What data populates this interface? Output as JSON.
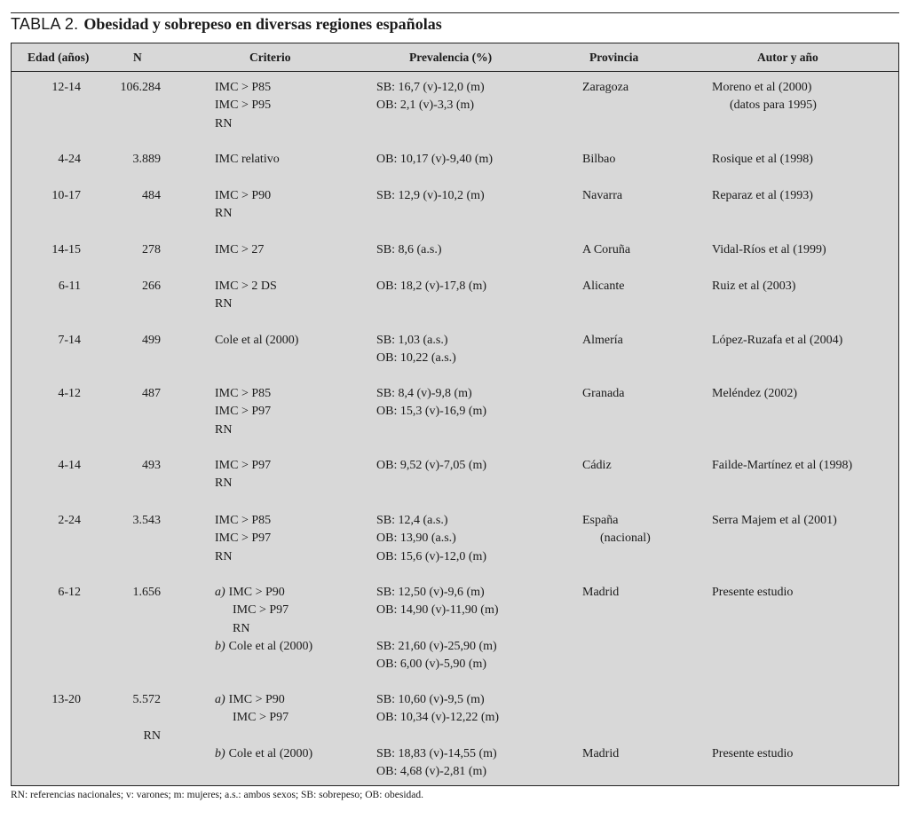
{
  "title": {
    "label": "TABLA 2.",
    "text": "Obesidad y sobrepeso en diversas regiones españolas"
  },
  "headers": [
    "Edad (años)",
    "N",
    "Criterio",
    "Prevalencia (%)",
    "Provincia",
    "Autor y año"
  ],
  "rows": [
    {
      "edad": [
        "12-14"
      ],
      "n": [
        "106.284"
      ],
      "criterio": [
        {
          "t": "IMC > P85"
        },
        {
          "t": "IMC > P95"
        },
        {
          "t": "RN"
        }
      ],
      "prev": [
        "SB: 16,7 (v)-12,0 (m)",
        "OB: 2,1 (v)-3,3 (m)"
      ],
      "prov": [
        {
          "t": "Zaragoza"
        }
      ],
      "autor": [
        {
          "t": "Moreno et al (2000)"
        },
        {
          "t": "(datos para 1995)",
          "sub": true
        }
      ]
    },
    {
      "edad": [
        "4-24"
      ],
      "n": [
        "3.889"
      ],
      "criterio": [
        {
          "t": "IMC relativo"
        }
      ],
      "prev": [
        "OB: 10,17 (v)-9,40 (m)"
      ],
      "prov": [
        {
          "t": "Bilbao"
        }
      ],
      "autor": [
        {
          "t": "Rosique et al (1998)"
        }
      ]
    },
    {
      "edad": [
        "10-17"
      ],
      "n": [
        "484"
      ],
      "criterio": [
        {
          "t": "IMC > P90"
        },
        {
          "t": "RN"
        }
      ],
      "prev": [
        "SB: 12,9 (v)-10,2 (m)"
      ],
      "prov": [
        {
          "t": "Navarra"
        }
      ],
      "autor": [
        {
          "t": "Reparaz et al (1993)"
        }
      ]
    },
    {
      "edad": [
        "14-15"
      ],
      "n": [
        "278"
      ],
      "criterio": [
        {
          "t": "IMC > 27"
        }
      ],
      "prev": [
        "SB: 8,6 (a.s.)"
      ],
      "prov": [
        {
          "t": "A Coruña"
        }
      ],
      "autor": [
        {
          "t": "Vidal-Ríos et al (1999)"
        }
      ]
    },
    {
      "edad": [
        "6-11"
      ],
      "n": [
        "266"
      ],
      "criterio": [
        {
          "t": "IMC > 2 DS"
        },
        {
          "t": "RN"
        }
      ],
      "prev": [
        "OB: 18,2 (v)-17,8 (m)"
      ],
      "prov": [
        {
          "t": "Alicante"
        }
      ],
      "autor": [
        {
          "t": "Ruiz et al (2003)"
        }
      ]
    },
    {
      "edad": [
        "7-14"
      ],
      "n": [
        "499"
      ],
      "criterio": [
        {
          "t": "Cole et al (2000)"
        }
      ],
      "prev": [
        "SB: 1,03 (a.s.)",
        "OB: 10,22 (a.s.)"
      ],
      "prov": [
        {
          "t": "Almería"
        }
      ],
      "autor": [
        {
          "t": "López-Ruzafa et al (2004)"
        }
      ]
    },
    {
      "edad": [
        "4-12"
      ],
      "n": [
        "487"
      ],
      "criterio": [
        {
          "t": "IMC > P85"
        },
        {
          "t": "IMC > P97"
        },
        {
          "t": "RN"
        }
      ],
      "prev": [
        "SB: 8,4 (v)-9,8 (m)",
        "OB: 15,3 (v)-16,9 (m)"
      ],
      "prov": [
        {
          "t": "Granada"
        }
      ],
      "autor": [
        {
          "t": "Meléndez (2002)"
        }
      ]
    },
    {
      "edad": [
        "4-14"
      ],
      "n": [
        "493"
      ],
      "criterio": [
        {
          "t": "IMC > P97"
        },
        {
          "t": "RN"
        }
      ],
      "prev": [
        "OB: 9,52 (v)-7,05 (m)"
      ],
      "prov": [
        {
          "t": "Cádiz"
        }
      ],
      "autor": [
        {
          "t": "Failde-Martínez et al (1998)"
        }
      ]
    },
    {
      "edad": [
        "2-24"
      ],
      "n": [
        "3.543"
      ],
      "criterio": [
        {
          "t": "IMC > P85"
        },
        {
          "t": "IMC > P97"
        },
        {
          "t": "RN"
        }
      ],
      "prev": [
        "SB: 12,4 (a.s.)",
        "OB: 13,90 (a.s.)",
        "OB: 15,6 (v)-12,0 (m)"
      ],
      "prov": [
        {
          "t": "España"
        },
        {
          "t": "(nacional)",
          "sub": true
        }
      ],
      "autor": [
        {
          "t": "Serra Majem et al (2001)"
        }
      ]
    },
    {
      "edad": [
        "6-12"
      ],
      "n": [
        "1.656"
      ],
      "criterio": [
        {
          "p": "a)",
          "t": "IMC > P90"
        },
        {
          "t": "IMC > P97",
          "sub": true
        },
        {
          "t": "RN",
          "sub": true
        },
        {
          "p": "b)",
          "t": "Cole et al (2000)"
        }
      ],
      "prev": [
        "SB: 12,50 (v)-9,6 (m)",
        "OB: 14,90 (v)-11,90 (m)",
        "",
        "SB: 21,60 (v)-25,90 (m)",
        "OB: 6,00 (v)-5,90 (m)"
      ],
      "prov": [
        {
          "t": "Madrid"
        }
      ],
      "autor": [
        {
          "t": "Presente estudio"
        }
      ]
    },
    {
      "edad": [
        "13-20"
      ],
      "n": [
        "5.572",
        "",
        "RN"
      ],
      "criterio": [
        {
          "p": "a)",
          "t": "IMC > P90"
        },
        {
          "t": "IMC > P97",
          "sub": true
        },
        {
          "t": ""
        },
        {
          "p": "b)",
          "t": "Cole et al (2000)"
        }
      ],
      "prev": [
        "SB: 10,60 (v)-9,5 (m)",
        "OB: 10,34 (v)-12,22 (m)",
        "",
        "SB: 18,83 (v)-14,55 (m)",
        "OB: 4,68 (v)-2,81 (m)"
      ],
      "prov": [
        {
          "t": ""
        },
        {
          "t": ""
        },
        {
          "t": ""
        },
        {
          "t": "Madrid"
        }
      ],
      "autor": [
        {
          "t": ""
        },
        {
          "t": ""
        },
        {
          "t": ""
        },
        {
          "t": "Presente estudio"
        }
      ]
    }
  ],
  "footnote": "RN: referencias nacionales; v: varones; m: mujeres; a.s.: ambos sexos; SB: sobrepeso; OB: obesidad."
}
